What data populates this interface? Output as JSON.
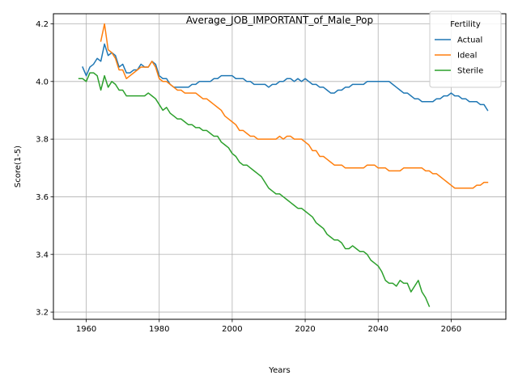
{
  "chart_data": {
    "type": "line",
    "title": "Average_JOB_IMPORTANT_of_Male_Pop",
    "xlabel": "Years",
    "ylabel": "Score(1-5)",
    "xlim": [
      1951,
      2075
    ],
    "ylim": [
      3.175,
      4.235
    ],
    "xticks": [
      1960,
      1980,
      2000,
      2020,
      2040,
      2060
    ],
    "yticks": [
      3.2,
      3.4,
      3.6,
      3.8,
      4.0,
      4.2
    ],
    "xtick_labels": [
      "1960",
      "1980",
      "2000",
      "2020",
      "2040",
      "2060"
    ],
    "ytick_labels": [
      "3.2",
      "3.4",
      "3.6",
      "3.8",
      "4.0",
      "4.2"
    ],
    "grid": true,
    "legend": {
      "title": "Fertility",
      "placement": "top-right"
    },
    "series": [
      {
        "name": "Actual",
        "color": "#1f77b4",
        "points": [
          [
            1959,
            4.05
          ],
          [
            1960,
            4.02
          ],
          [
            1961,
            4.05
          ],
          [
            1962,
            4.06
          ],
          [
            1963,
            4.08
          ],
          [
            1964,
            4.07
          ],
          [
            1965,
            4.13
          ],
          [
            1966,
            4.09
          ],
          [
            1967,
            4.1
          ],
          [
            1968,
            4.09
          ],
          [
            1969,
            4.05
          ],
          [
            1970,
            4.06
          ],
          [
            1971,
            4.03
          ],
          [
            1972,
            4.03
          ],
          [
            1973,
            4.04
          ],
          [
            1974,
            4.04
          ],
          [
            1975,
            4.06
          ],
          [
            1976,
            4.05
          ],
          [
            1977,
            4.05
          ],
          [
            1978,
            4.07
          ],
          [
            1979,
            4.06
          ],
          [
            1980,
            4.02
          ],
          [
            1981,
            4.01
          ],
          [
            1982,
            4.01
          ],
          [
            1983,
            3.99
          ],
          [
            1984,
            3.98
          ],
          [
            1985,
            3.98
          ],
          [
            1986,
            3.98
          ],
          [
            1987,
            3.98
          ],
          [
            1988,
            3.98
          ],
          [
            1989,
            3.99
          ],
          [
            1990,
            3.99
          ],
          [
            1991,
            4.0
          ],
          [
            1992,
            4.0
          ],
          [
            1993,
            4.0
          ],
          [
            1994,
            4.0
          ],
          [
            1995,
            4.01
          ],
          [
            1996,
            4.01
          ],
          [
            1997,
            4.02
          ],
          [
            1998,
            4.02
          ],
          [
            1999,
            4.02
          ],
          [
            2000,
            4.02
          ],
          [
            2001,
            4.01
          ],
          [
            2002,
            4.01
          ],
          [
            2003,
            4.01
          ],
          [
            2004,
            4.0
          ],
          [
            2005,
            4.0
          ],
          [
            2006,
            3.99
          ],
          [
            2007,
            3.99
          ],
          [
            2008,
            3.99
          ],
          [
            2009,
            3.99
          ],
          [
            2010,
            3.98
          ],
          [
            2011,
            3.99
          ],
          [
            2012,
            3.99
          ],
          [
            2013,
            4.0
          ],
          [
            2014,
            4.0
          ],
          [
            2015,
            4.01
          ],
          [
            2016,
            4.01
          ],
          [
            2017,
            4.0
          ],
          [
            2018,
            4.01
          ],
          [
            2019,
            4.0
          ],
          [
            2020,
            4.01
          ],
          [
            2021,
            4.0
          ],
          [
            2022,
            3.99
          ],
          [
            2023,
            3.99
          ],
          [
            2024,
            3.98
          ],
          [
            2025,
            3.98
          ],
          [
            2026,
            3.97
          ],
          [
            2027,
            3.96
          ],
          [
            2028,
            3.96
          ],
          [
            2029,
            3.97
          ],
          [
            2030,
            3.97
          ],
          [
            2031,
            3.98
          ],
          [
            2032,
            3.98
          ],
          [
            2033,
            3.99
          ],
          [
            2034,
            3.99
          ],
          [
            2035,
            3.99
          ],
          [
            2036,
            3.99
          ],
          [
            2037,
            4.0
          ],
          [
            2038,
            4.0
          ],
          [
            2039,
            4.0
          ],
          [
            2040,
            4.0
          ],
          [
            2041,
            4.0
          ],
          [
            2042,
            4.0
          ],
          [
            2043,
            4.0
          ],
          [
            2044,
            3.99
          ],
          [
            2045,
            3.98
          ],
          [
            2046,
            3.97
          ],
          [
            2047,
            3.96
          ],
          [
            2048,
            3.96
          ],
          [
            2049,
            3.95
          ],
          [
            2050,
            3.94
          ],
          [
            2051,
            3.94
          ],
          [
            2052,
            3.93
          ],
          [
            2053,
            3.93
          ],
          [
            2054,
            3.93
          ],
          [
            2055,
            3.93
          ],
          [
            2056,
            3.94
          ],
          [
            2057,
            3.94
          ],
          [
            2058,
            3.95
          ],
          [
            2059,
            3.95
          ],
          [
            2060,
            3.96
          ],
          [
            2061,
            3.95
          ],
          [
            2062,
            3.95
          ],
          [
            2063,
            3.94
          ],
          [
            2064,
            3.94
          ],
          [
            2065,
            3.93
          ],
          [
            2066,
            3.93
          ],
          [
            2067,
            3.93
          ],
          [
            2068,
            3.92
          ],
          [
            2069,
            3.92
          ],
          [
            2070,
            3.9
          ]
        ]
      },
      {
        "name": "Ideal",
        "color": "#ff7f0e",
        "points": [
          [
            1964,
            4.14
          ],
          [
            1965,
            4.2
          ],
          [
            1966,
            4.11
          ],
          [
            1967,
            4.1
          ],
          [
            1968,
            4.08
          ],
          [
            1969,
            4.04
          ],
          [
            1970,
            4.04
          ],
          [
            1971,
            4.01
          ],
          [
            1972,
            4.02
          ],
          [
            1973,
            4.03
          ],
          [
            1974,
            4.04
          ],
          [
            1975,
            4.05
          ],
          [
            1976,
            4.05
          ],
          [
            1977,
            4.05
          ],
          [
            1978,
            4.07
          ],
          [
            1979,
            4.05
          ],
          [
            1980,
            4.01
          ],
          [
            1981,
            4.0
          ],
          [
            1982,
            4.0
          ],
          [
            1983,
            3.99
          ],
          [
            1984,
            3.98
          ],
          [
            1985,
            3.97
          ],
          [
            1986,
            3.97
          ],
          [
            1987,
            3.96
          ],
          [
            1988,
            3.96
          ],
          [
            1989,
            3.96
          ],
          [
            1990,
            3.96
          ],
          [
            1991,
            3.95
          ],
          [
            1992,
            3.94
          ],
          [
            1993,
            3.94
          ],
          [
            1994,
            3.93
          ],
          [
            1995,
            3.92
          ],
          [
            1996,
            3.91
          ],
          [
            1997,
            3.9
          ],
          [
            1998,
            3.88
          ],
          [
            1999,
            3.87
          ],
          [
            2000,
            3.86
          ],
          [
            2001,
            3.85
          ],
          [
            2002,
            3.83
          ],
          [
            2003,
            3.83
          ],
          [
            2004,
            3.82
          ],
          [
            2005,
            3.81
          ],
          [
            2006,
            3.81
          ],
          [
            2007,
            3.8
          ],
          [
            2008,
            3.8
          ],
          [
            2009,
            3.8
          ],
          [
            2010,
            3.8
          ],
          [
            2011,
            3.8
          ],
          [
            2012,
            3.8
          ],
          [
            2013,
            3.81
          ],
          [
            2014,
            3.8
          ],
          [
            2015,
            3.81
          ],
          [
            2016,
            3.81
          ],
          [
            2017,
            3.8
          ],
          [
            2018,
            3.8
          ],
          [
            2019,
            3.8
          ],
          [
            2020,
            3.79
          ],
          [
            2021,
            3.78
          ],
          [
            2022,
            3.76
          ],
          [
            2023,
            3.76
          ],
          [
            2024,
            3.74
          ],
          [
            2025,
            3.74
          ],
          [
            2026,
            3.73
          ],
          [
            2027,
            3.72
          ],
          [
            2028,
            3.71
          ],
          [
            2029,
            3.71
          ],
          [
            2030,
            3.71
          ],
          [
            2031,
            3.7
          ],
          [
            2032,
            3.7
          ],
          [
            2033,
            3.7
          ],
          [
            2034,
            3.7
          ],
          [
            2035,
            3.7
          ],
          [
            2036,
            3.7
          ],
          [
            2037,
            3.71
          ],
          [
            2038,
            3.71
          ],
          [
            2039,
            3.71
          ],
          [
            2040,
            3.7
          ],
          [
            2041,
            3.7
          ],
          [
            2042,
            3.7
          ],
          [
            2043,
            3.69
          ],
          [
            2044,
            3.69
          ],
          [
            2045,
            3.69
          ],
          [
            2046,
            3.69
          ],
          [
            2047,
            3.7
          ],
          [
            2048,
            3.7
          ],
          [
            2049,
            3.7
          ],
          [
            2050,
            3.7
          ],
          [
            2051,
            3.7
          ],
          [
            2052,
            3.7
          ],
          [
            2053,
            3.69
          ],
          [
            2054,
            3.69
          ],
          [
            2055,
            3.68
          ],
          [
            2056,
            3.68
          ],
          [
            2057,
            3.67
          ],
          [
            2058,
            3.66
          ],
          [
            2059,
            3.65
          ],
          [
            2060,
            3.64
          ],
          [
            2061,
            3.63
          ],
          [
            2062,
            3.63
          ],
          [
            2063,
            3.63
          ],
          [
            2064,
            3.63
          ],
          [
            2065,
            3.63
          ],
          [
            2066,
            3.63
          ],
          [
            2067,
            3.64
          ],
          [
            2068,
            3.64
          ],
          [
            2069,
            3.65
          ],
          [
            2070,
            3.65
          ]
        ]
      },
      {
        "name": "Sterile",
        "color": "#2ca02c",
        "points": [
          [
            1958,
            4.01
          ],
          [
            1959,
            4.01
          ],
          [
            1960,
            4.0
          ],
          [
            1961,
            4.03
          ],
          [
            1962,
            4.03
          ],
          [
            1963,
            4.02
          ],
          [
            1964,
            3.97
          ],
          [
            1965,
            4.02
          ],
          [
            1966,
            3.98
          ],
          [
            1967,
            4.0
          ],
          [
            1968,
            3.99
          ],
          [
            1969,
            3.97
          ],
          [
            1970,
            3.97
          ],
          [
            1971,
            3.95
          ],
          [
            1972,
            3.95
          ],
          [
            1973,
            3.95
          ],
          [
            1974,
            3.95
          ],
          [
            1975,
            3.95
          ],
          [
            1976,
            3.95
          ],
          [
            1977,
            3.96
          ],
          [
            1978,
            3.95
          ],
          [
            1979,
            3.94
          ],
          [
            1980,
            3.92
          ],
          [
            1981,
            3.9
          ],
          [
            1982,
            3.91
          ],
          [
            1983,
            3.89
          ],
          [
            1984,
            3.88
          ],
          [
            1985,
            3.87
          ],
          [
            1986,
            3.87
          ],
          [
            1987,
            3.86
          ],
          [
            1988,
            3.85
          ],
          [
            1989,
            3.85
          ],
          [
            1990,
            3.84
          ],
          [
            1991,
            3.84
          ],
          [
            1992,
            3.83
          ],
          [
            1993,
            3.83
          ],
          [
            1994,
            3.82
          ],
          [
            1995,
            3.81
          ],
          [
            1996,
            3.81
          ],
          [
            1997,
            3.79
          ],
          [
            1998,
            3.78
          ],
          [
            1999,
            3.77
          ],
          [
            2000,
            3.75
          ],
          [
            2001,
            3.74
          ],
          [
            2002,
            3.72
          ],
          [
            2003,
            3.71
          ],
          [
            2004,
            3.71
          ],
          [
            2005,
            3.7
          ],
          [
            2006,
            3.69
          ],
          [
            2007,
            3.68
          ],
          [
            2008,
            3.67
          ],
          [
            2009,
            3.65
          ],
          [
            2010,
            3.63
          ],
          [
            2011,
            3.62
          ],
          [
            2012,
            3.61
          ],
          [
            2013,
            3.61
          ],
          [
            2014,
            3.6
          ],
          [
            2015,
            3.59
          ],
          [
            2016,
            3.58
          ],
          [
            2017,
            3.57
          ],
          [
            2018,
            3.56
          ],
          [
            2019,
            3.56
          ],
          [
            2020,
            3.55
          ],
          [
            2021,
            3.54
          ],
          [
            2022,
            3.53
          ],
          [
            2023,
            3.51
          ],
          [
            2024,
            3.5
          ],
          [
            2025,
            3.49
          ],
          [
            2026,
            3.47
          ],
          [
            2027,
            3.46
          ],
          [
            2028,
            3.45
          ],
          [
            2029,
            3.45
          ],
          [
            2030,
            3.44
          ],
          [
            2031,
            3.42
          ],
          [
            2032,
            3.42
          ],
          [
            2033,
            3.43
          ],
          [
            2034,
            3.42
          ],
          [
            2035,
            3.41
          ],
          [
            2036,
            3.41
          ],
          [
            2037,
            3.4
          ],
          [
            2038,
            3.38
          ],
          [
            2039,
            3.37
          ],
          [
            2040,
            3.36
          ],
          [
            2041,
            3.34
          ],
          [
            2042,
            3.31
          ],
          [
            2043,
            3.3
          ],
          [
            2044,
            3.3
          ],
          [
            2045,
            3.29
          ],
          [
            2046,
            3.31
          ],
          [
            2047,
            3.3
          ],
          [
            2048,
            3.3
          ],
          [
            2049,
            3.27
          ],
          [
            2050,
            3.29
          ],
          [
            2051,
            3.31
          ],
          [
            2052,
            3.27
          ],
          [
            2053,
            3.25
          ],
          [
            2054,
            3.22
          ]
        ]
      }
    ]
  }
}
